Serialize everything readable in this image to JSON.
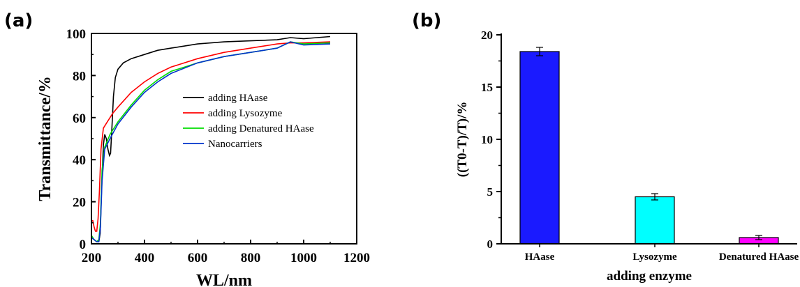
{
  "panels": {
    "a": "(a)",
    "b": "(b)"
  },
  "chart_data": [
    {
      "type": "line",
      "xlabel": "WL/nm",
      "ylabel": "Transmittance/%",
      "xlim": [
        200,
        1200
      ],
      "ylim": [
        0,
        100
      ],
      "xticks": [
        200,
        400,
        600,
        800,
        1000,
        1200
      ],
      "yticks": [
        0,
        20,
        40,
        60,
        80,
        100
      ],
      "legend_position": "center-right",
      "series": [
        {
          "name": "adding HAase",
          "color": "#000000",
          "points": [
            [
              200,
              3
            ],
            [
              210,
              2
            ],
            [
              220,
              1
            ],
            [
              228,
              1
            ],
            [
              233,
              5
            ],
            [
              238,
              25
            ],
            [
              245,
              47
            ],
            [
              250,
              52
            ],
            [
              256,
              50
            ],
            [
              262,
              45
            ],
            [
              268,
              42
            ],
            [
              272,
              43
            ],
            [
              277,
              55
            ],
            [
              283,
              70
            ],
            [
              290,
              79
            ],
            [
              300,
              83
            ],
            [
              320,
              86
            ],
            [
              350,
              88
            ],
            [
              400,
              90
            ],
            [
              450,
              92
            ],
            [
              500,
              93
            ],
            [
              600,
              95
            ],
            [
              700,
              96
            ],
            [
              800,
              96.5
            ],
            [
              900,
              97
            ],
            [
              950,
              98
            ],
            [
              1000,
              97.5
            ],
            [
              1050,
              98
            ],
            [
              1100,
              98.5
            ]
          ]
        },
        {
          "name": "adding Lysozyme",
          "color": "#ff0000",
          "points": [
            [
              200,
              11
            ],
            [
              205,
              11
            ],
            [
              210,
              8
            ],
            [
              215,
              6
            ],
            [
              220,
              6
            ],
            [
              225,
              12
            ],
            [
              230,
              25
            ],
            [
              236,
              45
            ],
            [
              245,
              55
            ],
            [
              260,
              58
            ],
            [
              280,
              62
            ],
            [
              300,
              65
            ],
            [
              350,
              72
            ],
            [
              400,
              77
            ],
            [
              450,
              81
            ],
            [
              500,
              84
            ],
            [
              600,
              88
            ],
            [
              700,
              91
            ],
            [
              800,
              93
            ],
            [
              900,
              95
            ],
            [
              950,
              95.5
            ],
            [
              1000,
              95.5
            ],
            [
              1100,
              96
            ]
          ]
        },
        {
          "name": "adding Denatured HAase",
          "color": "#00dd00",
          "points": [
            [
              200,
              4
            ],
            [
              210,
              2
            ],
            [
              220,
              1
            ],
            [
              228,
              2
            ],
            [
              234,
              10
            ],
            [
              240,
              35
            ],
            [
              250,
              46
            ],
            [
              270,
              52
            ],
            [
              300,
              58
            ],
            [
              350,
              66
            ],
            [
              400,
              73
            ],
            [
              450,
              78
            ],
            [
              500,
              82
            ],
            [
              600,
              86
            ],
            [
              700,
              89
            ],
            [
              800,
              91
            ],
            [
              900,
              93
            ],
            [
              950,
              96
            ],
            [
              1000,
              95
            ],
            [
              1100,
              95.5
            ]
          ]
        },
        {
          "name": "Nanocarriers",
          "color": "#0033cc",
          "points": [
            [
              200,
              3
            ],
            [
              210,
              2
            ],
            [
              220,
              1
            ],
            [
              228,
              1
            ],
            [
              234,
              8
            ],
            [
              240,
              30
            ],
            [
              250,
              45
            ],
            [
              270,
              50
            ],
            [
              300,
              57
            ],
            [
              350,
              65
            ],
            [
              400,
              72
            ],
            [
              450,
              77
            ],
            [
              500,
              81
            ],
            [
              600,
              86
            ],
            [
              700,
              89
            ],
            [
              800,
              91
            ],
            [
              900,
              93
            ],
            [
              950,
              96
            ],
            [
              1000,
              94.5
            ],
            [
              1100,
              95
            ]
          ]
        }
      ]
    },
    {
      "type": "bar",
      "xlabel": "adding enzyme",
      "ylabel": "((T0-T)/T)/%",
      "ylim": [
        0,
        20
      ],
      "yticks": [
        0,
        5,
        10,
        15,
        20
      ],
      "categories": [
        "HAase",
        "Lysozyme",
        "Denatured HAase"
      ],
      "values": [
        18.4,
        4.5,
        0.6
      ],
      "errors": [
        0.4,
        0.3,
        0.2
      ],
      "colors": [
        "#1a1aff",
        "#00ffff",
        "#ff00ff"
      ]
    }
  ]
}
